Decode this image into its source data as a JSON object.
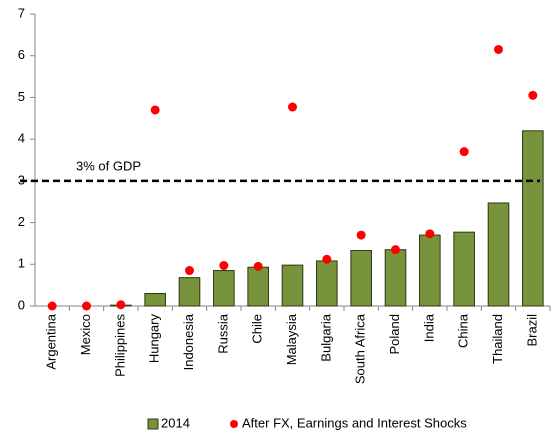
{
  "chart_data": {
    "type": "bar",
    "categories": [
      "Argentina",
      "Mexico",
      "Philippines",
      "Hungary",
      "Indonesia",
      "Russia",
      "Chile",
      "Malaysia",
      "Bulgaria",
      "South Africa",
      "Poland",
      "India",
      "China",
      "Thailand",
      "Brazil"
    ],
    "series": [
      {
        "name": "2014",
        "type": "bar",
        "color": "#77933c",
        "values": [
          0,
          0,
          0.02,
          0.3,
          0.68,
          0.85,
          0.93,
          0.98,
          1.08,
          1.33,
          1.35,
          1.7,
          1.77,
          2.47,
          4.2
        ]
      },
      {
        "name": "After FX, Earnings and Interest Shocks",
        "type": "scatter",
        "color": "#ff0000",
        "values": [
          0,
          0,
          0.03,
          4.7,
          0.85,
          0.97,
          0.95,
          4.77,
          1.12,
          1.7,
          1.35,
          1.73,
          3.7,
          6.15,
          5.05
        ]
      }
    ],
    "reference_line": {
      "value": 3,
      "label": "3% of GDP"
    },
    "ylim": [
      0,
      7
    ],
    "yticks": [
      0,
      1,
      2,
      3,
      4,
      5,
      6,
      7
    ],
    "legend": "bottom"
  }
}
